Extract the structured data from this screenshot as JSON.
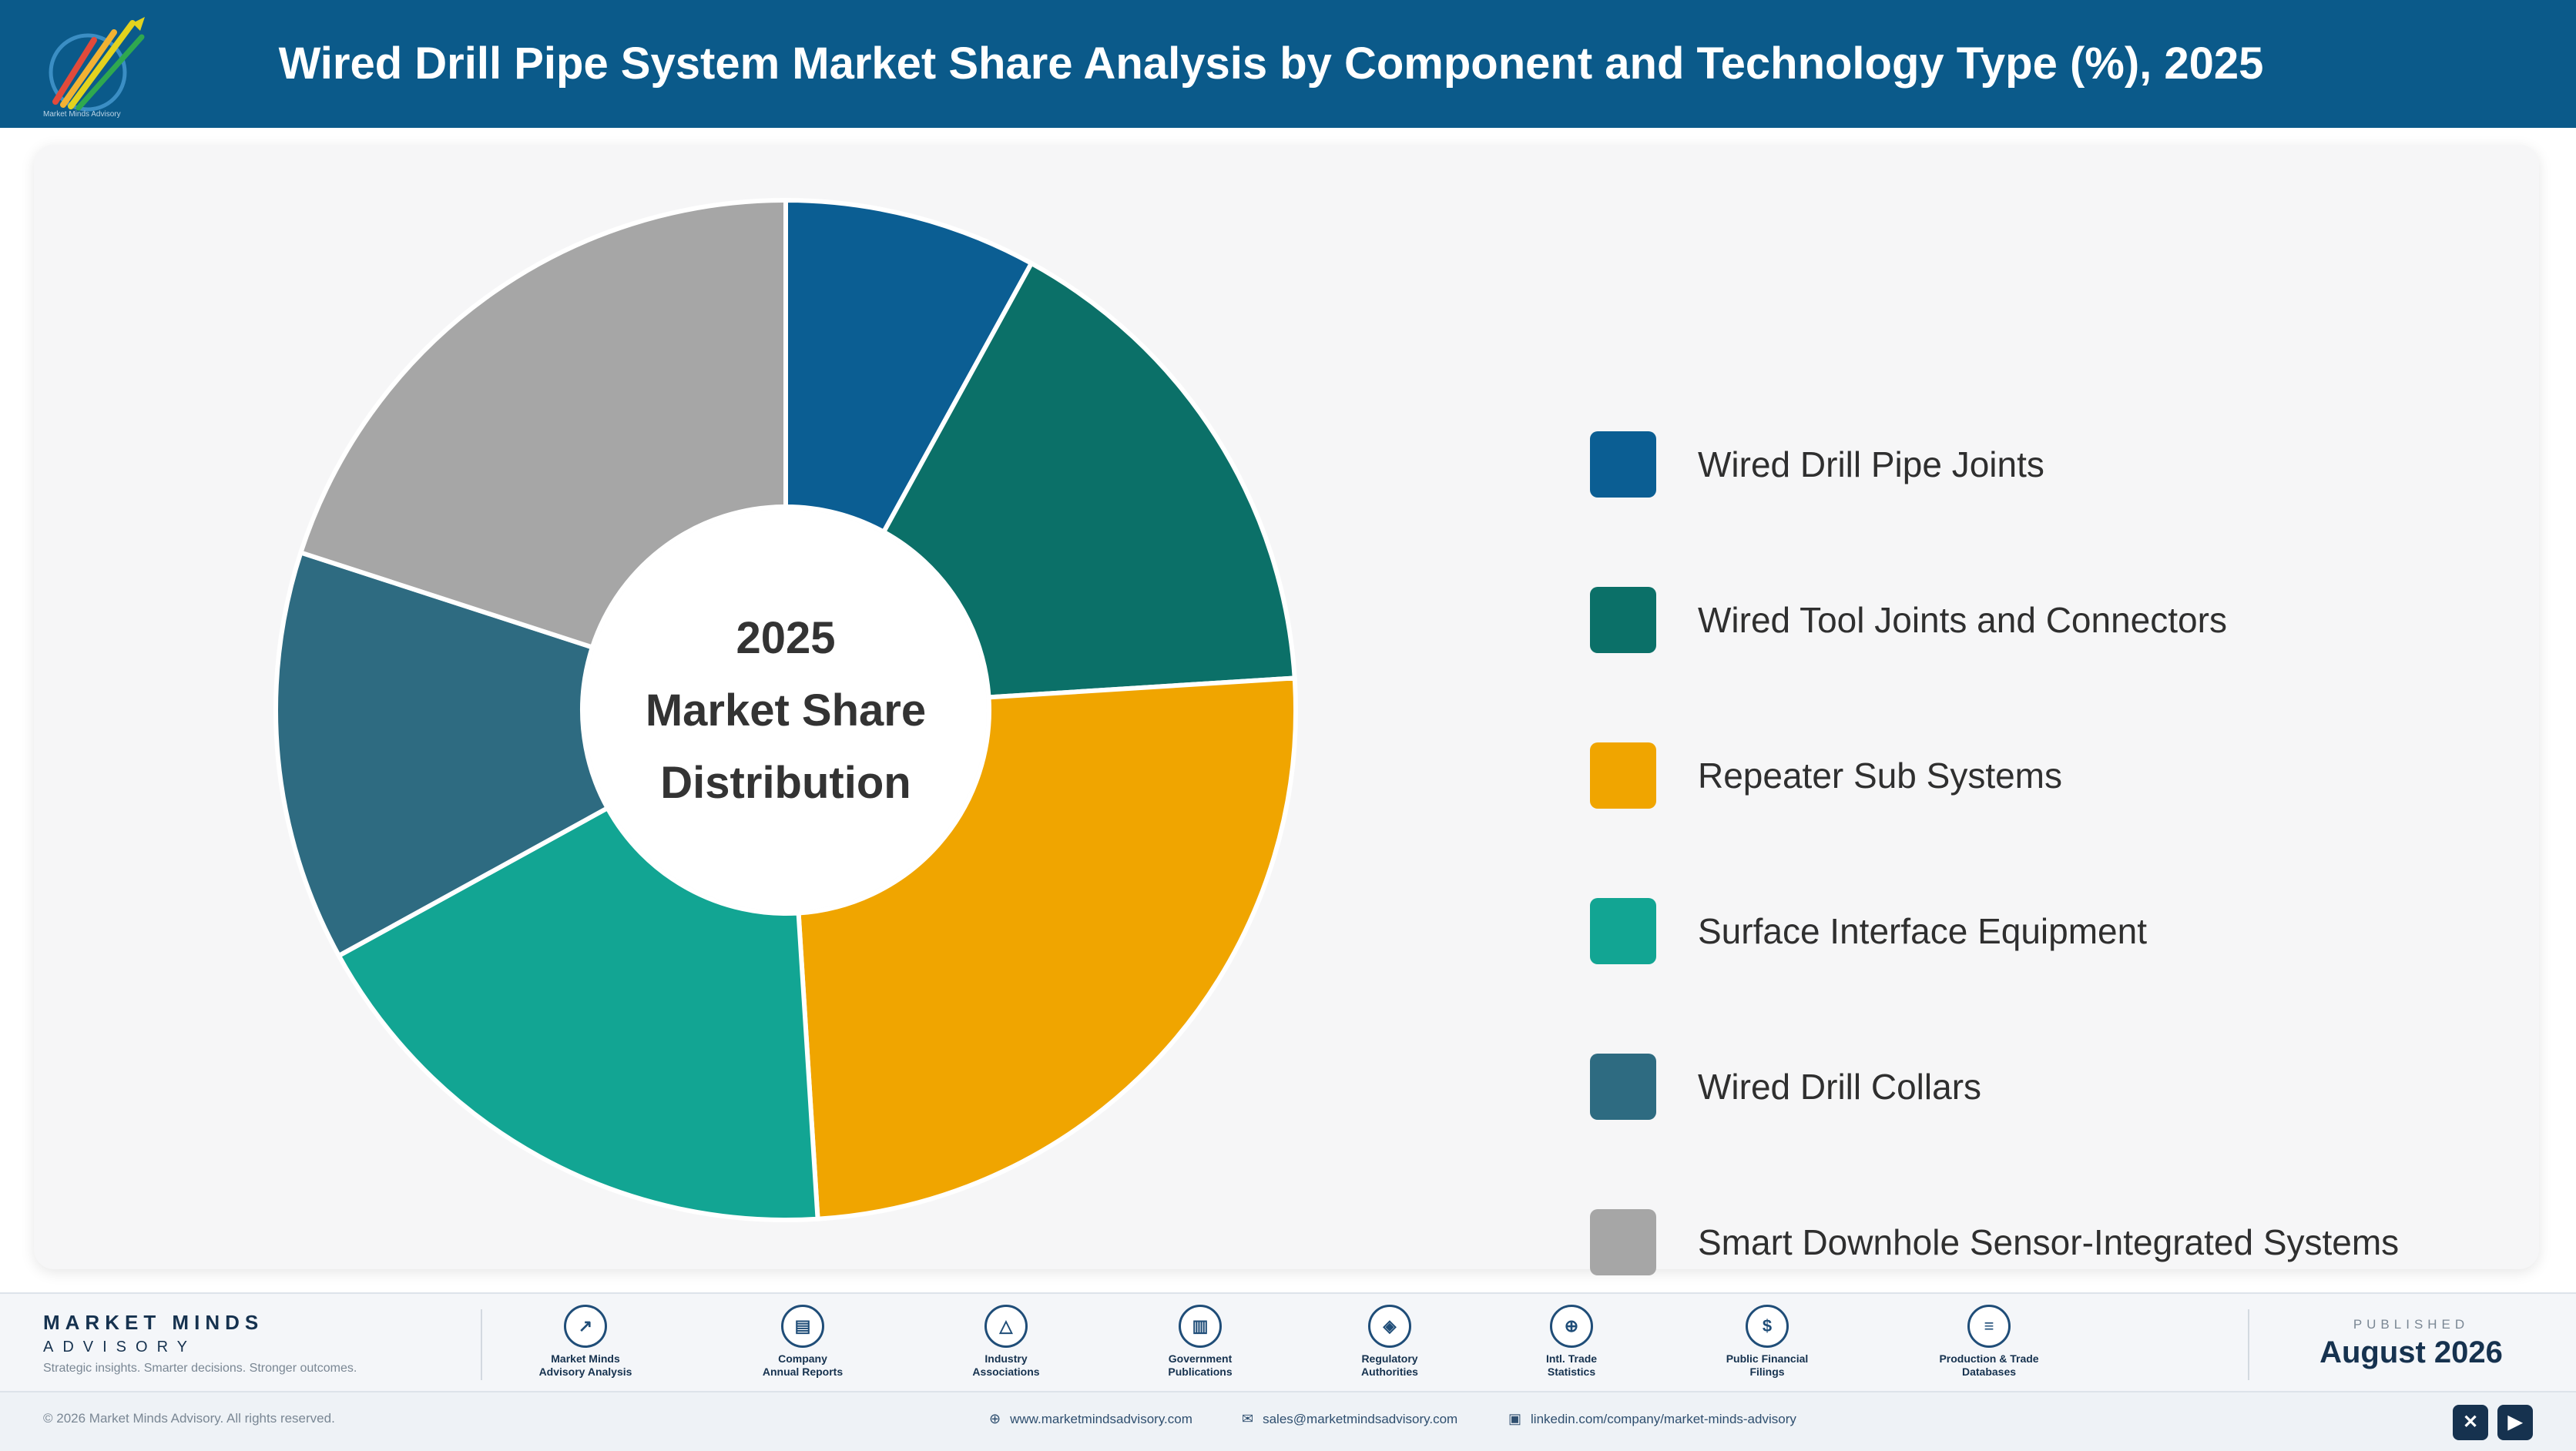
{
  "header": {
    "title": "Wired Drill Pipe System Market Share Analysis by Component and Technology Type (%), 2025",
    "logo_text": "Market Minds Advisory"
  },
  "chart_data": {
    "type": "pie",
    "variant": "donut",
    "title": "",
    "center_label": [
      "2025",
      "Market Share",
      "Distribution"
    ],
    "categories": [
      "Wired Drill Pipe Joints",
      "Wired Tool Joints and Connectors",
      "Repeater Sub Systems",
      "Surface Interface Equipment",
      "Wired Drill Collars",
      "Smart Downhole Sensor-Integrated Systems"
    ],
    "values": [
      8,
      16,
      25,
      18,
      13,
      20
    ],
    "colors": [
      "#0b5e93",
      "#0b7068",
      "#f0a500",
      "#12a593",
      "#2e6b81",
      "#a6a6a6"
    ],
    "legend_position": "right"
  },
  "footer": {
    "brand_name": "MARKET MINDS",
    "brand_sub": "ADVISORY",
    "tagline": "Strategic insights. Smarter decisions. Stronger outcomes.",
    "sources": [
      {
        "label": "Market Minds\nAdvisory Analysis",
        "icon": "chart-line-icon"
      },
      {
        "label": "Company\nAnnual Reports",
        "icon": "document-icon"
      },
      {
        "label": "Industry\nAssociations",
        "icon": "network-icon"
      },
      {
        "label": "Government\nPublications",
        "icon": "building-icon"
      },
      {
        "label": "Regulatory\nAuthorities",
        "icon": "shield-icon"
      },
      {
        "label": "Intl. Trade\nStatistics",
        "icon": "globe-icon"
      },
      {
        "label": "Public Financial\nFilings",
        "icon": "dollar-icon"
      },
      {
        "label": "Production & Trade\nDatabases",
        "icon": "database-icon"
      }
    ],
    "published_label": "PUBLISHED",
    "published_date": "August 2026",
    "copyright": "© 2026 Market Minds Advisory. All rights reserved.",
    "website": "www.marketmindsadvisory.com",
    "email": "sales@marketmindsadvisory.com",
    "linkedin": "linkedin.com/company/market-minds-advisory"
  }
}
